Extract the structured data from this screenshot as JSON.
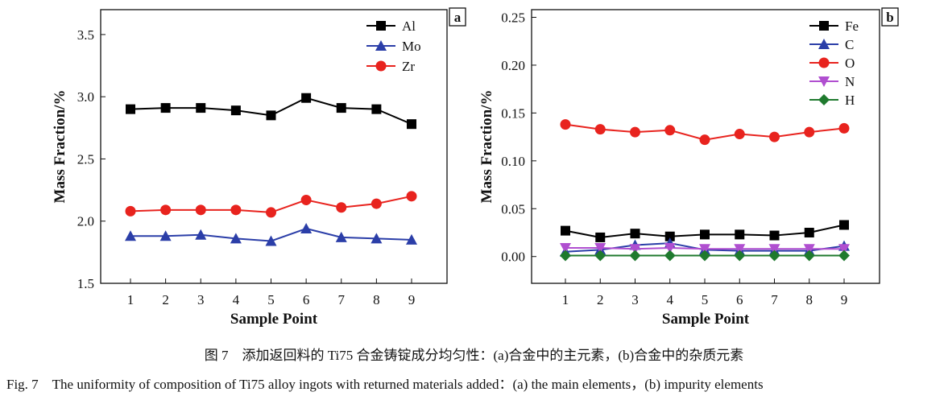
{
  "chart_data": [
    {
      "type": "line",
      "panel_label": "a",
      "xlabel": "Sample Point",
      "ylabel": "Mass Fraction/%",
      "x": [
        1,
        2,
        3,
        4,
        5,
        6,
        7,
        8,
        9
      ],
      "ylim": [
        1.5,
        3.7
      ],
      "yticks": [
        1.5,
        2.0,
        2.5,
        3.0,
        3.5
      ],
      "ytick_labels": [
        "1.5",
        "2.0",
        "2.5",
        "3.0",
        "3.5"
      ],
      "grid": false,
      "legend_placement": "top-right",
      "series": [
        {
          "name": "Al",
          "color": "#000000",
          "marker": "square",
          "values": [
            2.9,
            2.91,
            2.91,
            2.89,
            2.85,
            2.99,
            2.91,
            2.9,
            2.78
          ]
        },
        {
          "name": "Mo",
          "color": "#2b3ea8",
          "marker": "triangle-up",
          "values": [
            1.88,
            1.88,
            1.89,
            1.86,
            1.84,
            1.94,
            1.87,
            1.86,
            1.85
          ]
        },
        {
          "name": "Zr",
          "color": "#e8231e",
          "marker": "circle",
          "values": [
            2.08,
            2.09,
            2.09,
            2.09,
            2.07,
            2.17,
            2.11,
            2.14,
            2.2
          ]
        }
      ]
    },
    {
      "type": "line",
      "panel_label": "b",
      "xlabel": "Sample Point",
      "ylabel": "Mass Fraction/%",
      "x": [
        1,
        2,
        3,
        4,
        5,
        6,
        7,
        8,
        9
      ],
      "ylim": [
        -0.028,
        0.258
      ],
      "yticks": [
        0,
        0.05,
        0.1,
        0.15,
        0.2,
        0.25
      ],
      "ytick_labels": [
        "0.00",
        "0.05",
        "0.10",
        "0.15",
        "0.20",
        "0.25"
      ],
      "grid": false,
      "legend_placement": "top-right",
      "series": [
        {
          "name": "Fe",
          "color": "#000000",
          "marker": "square",
          "values": [
            0.027,
            0.02,
            0.024,
            0.021,
            0.023,
            0.023,
            0.022,
            0.025,
            0.033
          ]
        },
        {
          "name": "C",
          "color": "#2b3ea8",
          "marker": "triangle-up",
          "values": [
            0.005,
            0.007,
            0.012,
            0.014,
            0.007,
            0.006,
            0.006,
            0.006,
            0.011
          ]
        },
        {
          "name": "O",
          "color": "#e8231e",
          "marker": "circle",
          "values": [
            0.138,
            0.133,
            0.13,
            0.132,
            0.122,
            0.128,
            0.125,
            0.13,
            0.134
          ]
        },
        {
          "name": "N",
          "color": "#b04fd0",
          "marker": "triangle-down",
          "values": [
            0.009,
            0.009,
            0.008,
            0.009,
            0.008,
            0.008,
            0.008,
            0.008,
            0.008
          ]
        },
        {
          "name": "H",
          "color": "#1f7a2e",
          "marker": "diamond",
          "values": [
            0.001,
            0.001,
            0.001,
            0.001,
            0.001,
            0.001,
            0.001,
            0.001,
            0.001
          ]
        }
      ]
    }
  ],
  "caption": {
    "cn": "图 7　添加返回料的 Ti75 合金铸锭成分均匀性：(a)合金中的主元素，(b)合金中的杂质元素",
    "en": "Fig. 7　The uniformity of composition of Ti75 alloy ingots with returned materials added：(a) the main elements，(b) impurity elements"
  }
}
